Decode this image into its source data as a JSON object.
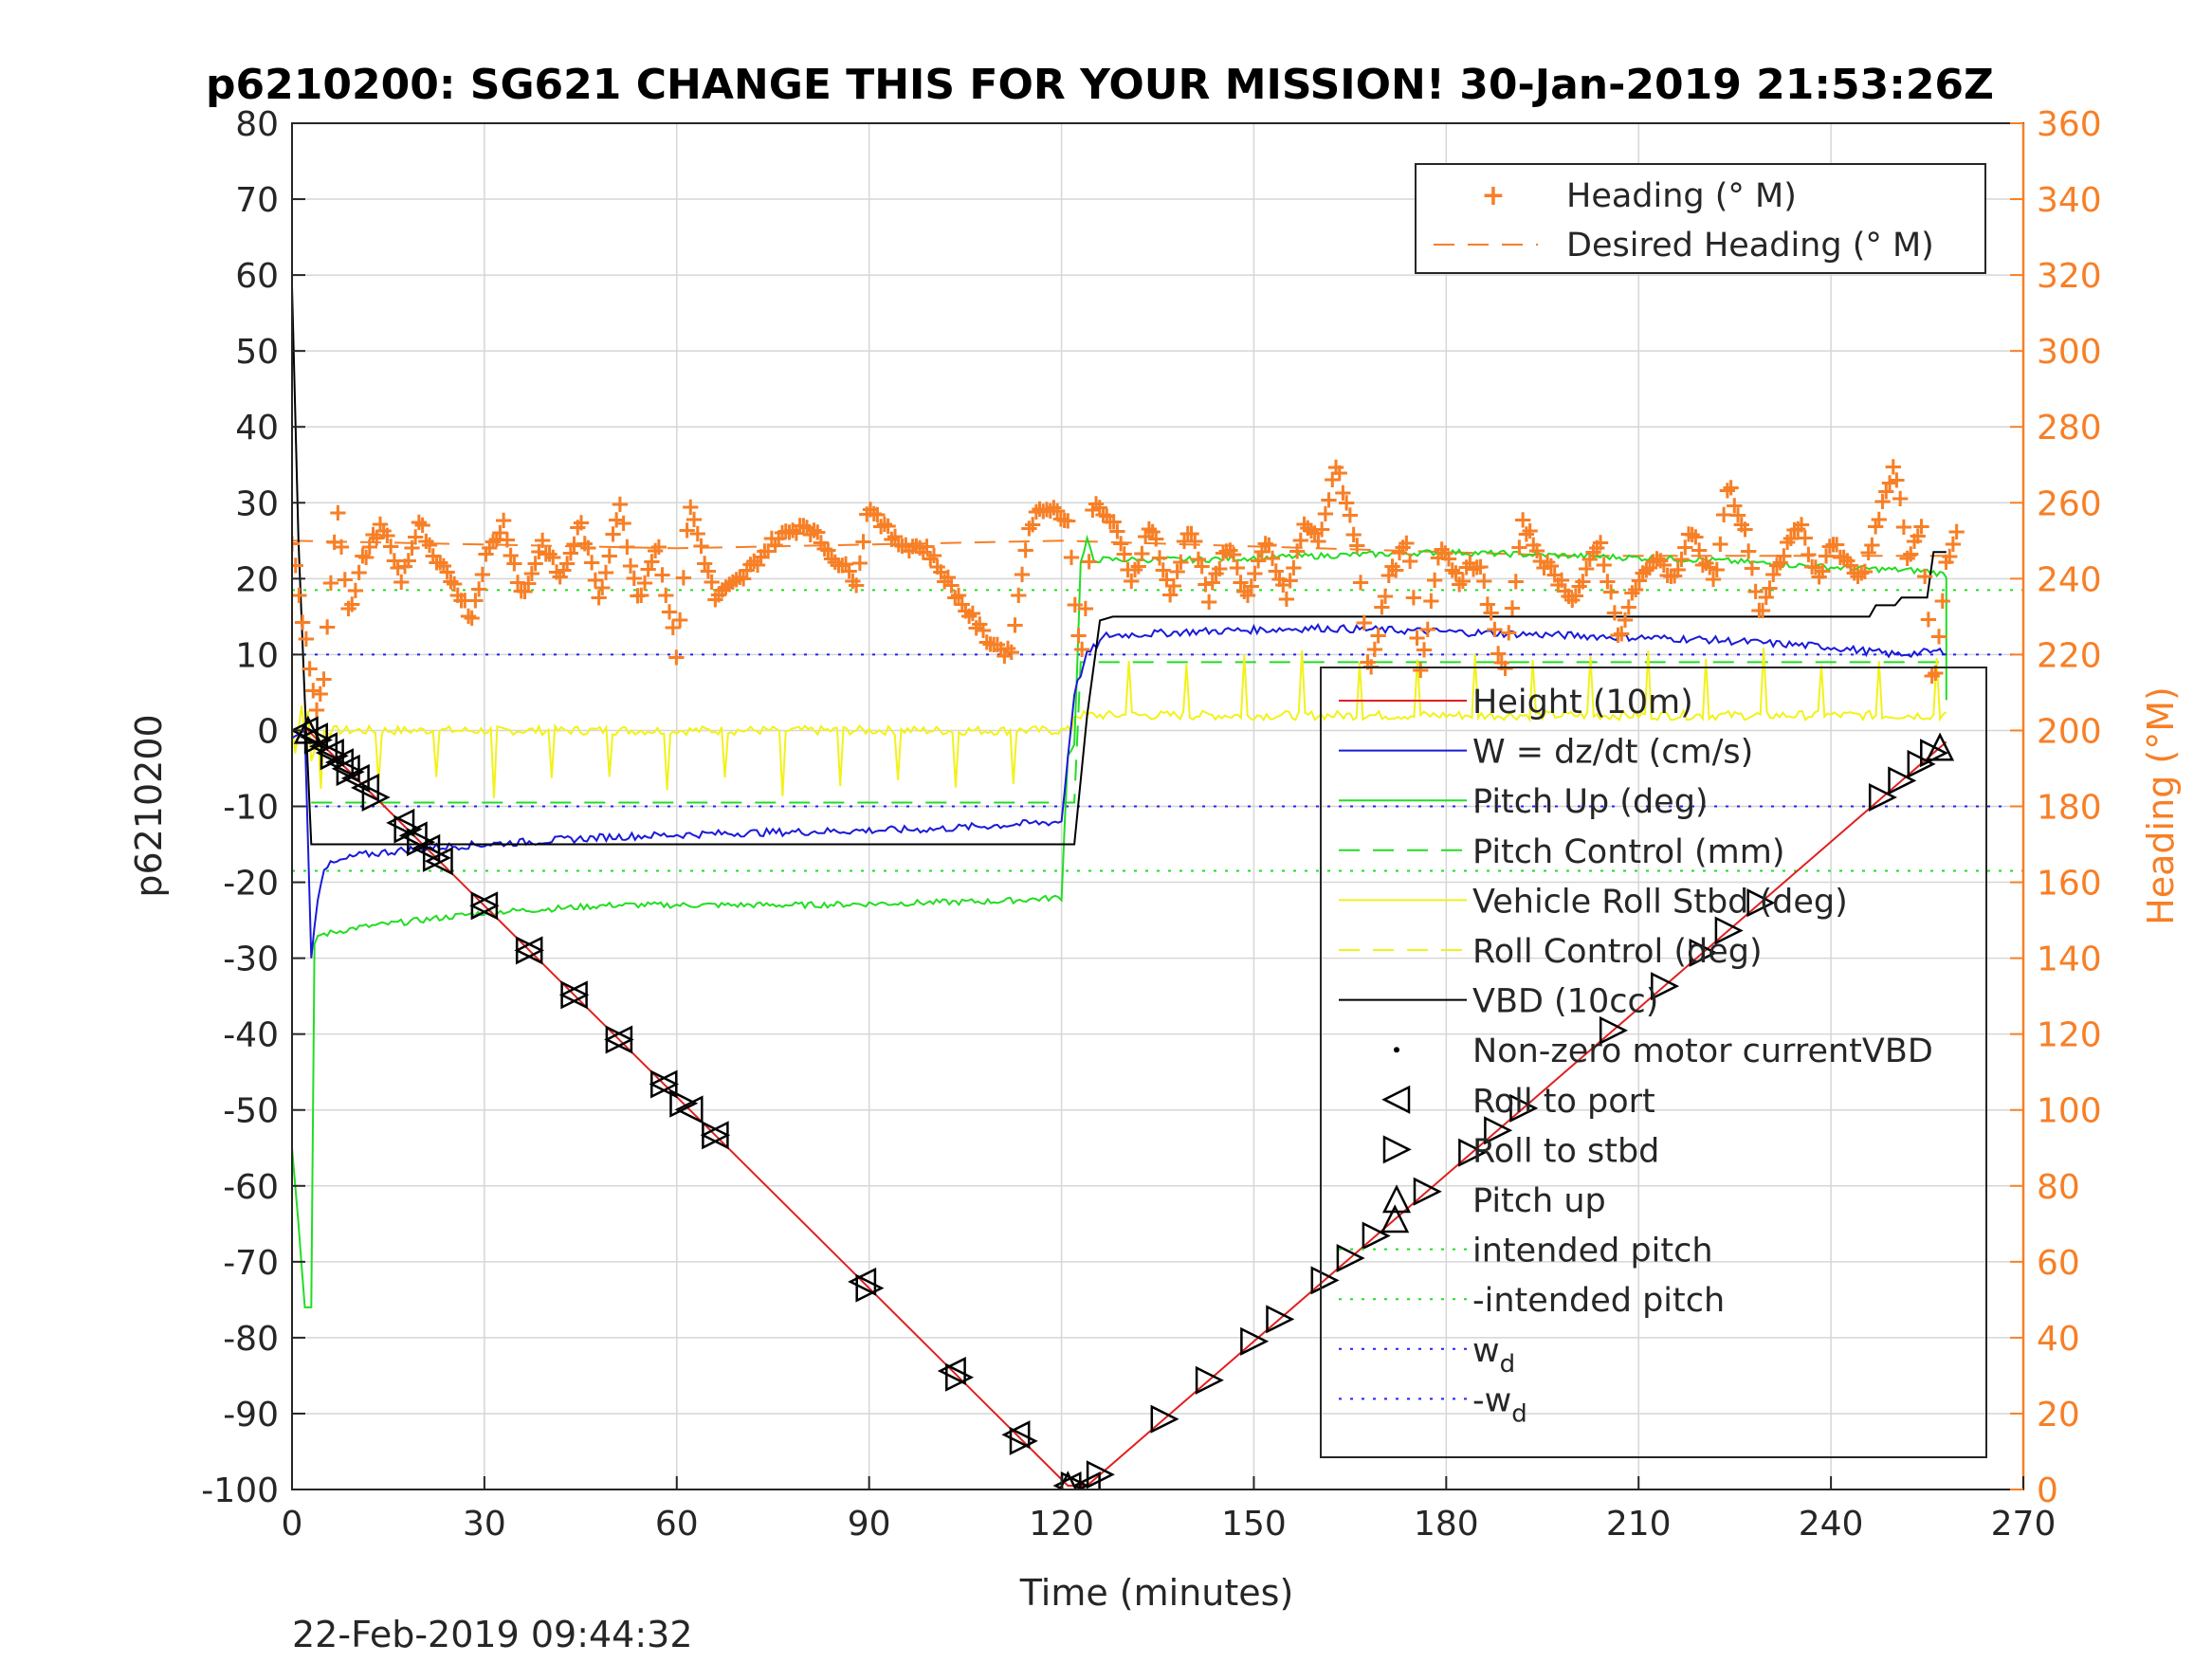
{
  "title": "p6210200: SG621 CHANGE THIS FOR YOUR MISSION! 30-Jan-2019 21:53:26Z",
  "footer_timestamp": "22-Feb-2019 09:44:32",
  "colors": {
    "heading": "#f77f26",
    "height": "#e02020",
    "w": "#1a1ad8",
    "pitch": "#22dd22",
    "roll": "#f2f21a",
    "vbd": "#000000",
    "wd": "#2020ff"
  },
  "chart_data": {
    "type": "line",
    "xlabel": "Time (minutes)",
    "ylabel_left": "p6210200",
    "ylabel_right": "Heading (°M)",
    "xlim": [
      0,
      270
    ],
    "ylim_left": [
      -100,
      80
    ],
    "ylim_right": [
      0,
      360
    ],
    "x_ticks": [
      "0",
      "30",
      "60",
      "90",
      "120",
      "150",
      "180",
      "210",
      "240",
      "270"
    ],
    "y_ticks_left": [
      "80",
      "70",
      "60",
      "50",
      "40",
      "30",
      "20",
      "10",
      "0",
      "-10",
      "-20",
      "-30",
      "-40",
      "-50",
      "-60",
      "-70",
      "-80",
      "-90",
      "-100"
    ],
    "y_ticks_right": [
      "360",
      "340",
      "320",
      "300",
      "280",
      "260",
      "240",
      "220",
      "200",
      "180",
      "160",
      "140",
      "120",
      "100",
      "80",
      "60",
      "40",
      "20",
      "0"
    ],
    "grid": true,
    "legend_heading": [
      "Heading (° M)",
      "Desired Heading (° M)"
    ],
    "legend_main": [
      "Height (10m)",
      "W = dz/dt (cm/s)",
      "Pitch Up (deg)",
      "Pitch Control (mm)",
      "Vehicle Roll Stbd (deg)",
      "Roll Control (deg)",
      "VBD (10cc)",
      "Non-zero motor currentVBD",
      "Roll to port",
      "Roll to stbd",
      "Pitch up",
      "intended pitch",
      "-intended pitch",
      "w_d",
      "-w_d"
    ],
    "legend_main_display": [
      {
        "text": "Height (10m)"
      },
      {
        "text": "W = dz/dt (cm/s)"
      },
      {
        "text": "Pitch Up (deg)"
      },
      {
        "text": "Pitch Control (mm)"
      },
      {
        "text": "Vehicle Roll Stbd (deg)"
      },
      {
        "text": "Roll Control (deg)"
      },
      {
        "text": "VBD (10cc)"
      },
      {
        "text": "Non-zero motor currentVBD"
      },
      {
        "text": "Roll to port"
      },
      {
        "text": "Roll to stbd"
      },
      {
        "text": "Pitch up"
      },
      {
        "text": "intended pitch"
      },
      {
        "text": "-intended pitch"
      },
      {
        "text": "w",
        "sub": "d"
      },
      {
        "text": "-w",
        "sub": "d"
      }
    ],
    "series": {
      "height": [
        [
          0,
          0
        ],
        [
          2.5,
          0
        ],
        [
          121,
          -99.5
        ],
        [
          124,
          -99.5
        ],
        [
          258,
          -1.5
        ]
      ],
      "vbd": [
        [
          0,
          58.5
        ],
        [
          1,
          25
        ],
        [
          2,
          4
        ],
        [
          3,
          -15
        ],
        [
          122,
          -15
        ],
        [
          124,
          2
        ],
        [
          126,
          14.5
        ],
        [
          128,
          15
        ],
        [
          246,
          15
        ],
        [
          247,
          16.5
        ],
        [
          250,
          16.5
        ],
        [
          251,
          17.5
        ],
        [
          255,
          17.5
        ],
        [
          256,
          23.5
        ],
        [
          258,
          23.5
        ]
      ],
      "w": [
        [
          0,
          -1
        ],
        [
          2,
          0
        ],
        [
          3,
          -30
        ],
        [
          4,
          -22
        ],
        [
          5,
          -18
        ],
        [
          10,
          -16.5
        ],
        [
          20,
          -15.5
        ],
        [
          30,
          -15
        ],
        [
          50,
          -14
        ],
        [
          70,
          -13.5
        ],
        [
          100,
          -13
        ],
        [
          120,
          -12
        ],
        [
          122,
          5
        ],
        [
          124,
          10
        ],
        [
          127,
          12.5
        ],
        [
          140,
          13
        ],
        [
          160,
          13.5
        ],
        [
          180,
          13
        ],
        [
          200,
          12.5
        ],
        [
          220,
          12
        ],
        [
          240,
          11
        ],
        [
          250,
          10
        ],
        [
          258,
          10.5
        ]
      ],
      "pitch": [
        [
          0,
          -55
        ],
        [
          1,
          -65
        ],
        [
          2,
          -76
        ],
        [
          3,
          -76
        ],
        [
          3,
          -30
        ],
        [
          4,
          -27
        ],
        [
          10,
          -26
        ],
        [
          20,
          -25
        ],
        [
          30,
          -24
        ],
        [
          50,
          -23
        ],
        [
          80,
          -23
        ],
        [
          110,
          -22.5
        ],
        [
          120,
          -22
        ],
        [
          121,
          -3
        ],
        [
          122,
          -2
        ],
        [
          123,
          22
        ],
        [
          124,
          25
        ],
        [
          125,
          22.5
        ],
        [
          140,
          22.5
        ],
        [
          160,
          23
        ],
        [
          180,
          23.5
        ],
        [
          200,
          23
        ],
        [
          220,
          22.5
        ],
        [
          240,
          21.5
        ],
        [
          255,
          21
        ],
        [
          258,
          20.5
        ],
        [
          258,
          4
        ]
      ],
      "pitch_control": [
        [
          3,
          -9.5
        ],
        [
          122,
          -9.5
        ],
        [
          123,
          9
        ],
        [
          258,
          9
        ]
      ],
      "intended_pitch": 18.5,
      "neg_intended_pitch": -18.5,
      "wd": 10,
      "neg_wd": -10,
      "roll_port_times": [
        2,
        3.5,
        5,
        6,
        7.5,
        8.5,
        10,
        11.5,
        17,
        19,
        21,
        23,
        30,
        37,
        44,
        51,
        58,
        62,
        66,
        89,
        103,
        113,
        121,
        124
      ],
      "roll_stbd_times": [
        4,
        6.5,
        9,
        13,
        18,
        20,
        22.5,
        30,
        37,
        44,
        51,
        58,
        61,
        66,
        90,
        104,
        114,
        122,
        126,
        136,
        143,
        150,
        154,
        161,
        165,
        169,
        177,
        184,
        188,
        192,
        206,
        214,
        220,
        224,
        229,
        248,
        251,
        254,
        256
      ],
      "pitch_up_times": [
        2.5,
        121,
        172,
        257
      ],
      "heading_anchors": [
        [
          0,
          250
        ],
        [
          2,
          225
        ],
        [
          3,
          215
        ],
        [
          4,
          205
        ],
        [
          5,
          215
        ],
        [
          7,
          260
        ],
        [
          9,
          230
        ],
        [
          11,
          245
        ],
        [
          14,
          255
        ],
        [
          17,
          240
        ],
        [
          20,
          255
        ],
        [
          22,
          245
        ],
        [
          25,
          240
        ],
        [
          28,
          230
        ],
        [
          30,
          245
        ],
        [
          33,
          255
        ],
        [
          36,
          235
        ],
        [
          39,
          250
        ],
        [
          42,
          240
        ],
        [
          45,
          255
        ],
        [
          48,
          235
        ],
        [
          51,
          260
        ],
        [
          54,
          235
        ],
        [
          57,
          250
        ],
        [
          60,
          220
        ],
        [
          62,
          260
        ],
        [
          66,
          235
        ],
        [
          70,
          240
        ],
        [
          75,
          250
        ],
        [
          80,
          255
        ],
        [
          85,
          245
        ],
        [
          88,
          240
        ],
        [
          90,
          260
        ],
        [
          94,
          250
        ],
        [
          99,
          248
        ],
        [
          104,
          235
        ],
        [
          108,
          225
        ],
        [
          112,
          220
        ],
        [
          115,
          255
        ],
        [
          118,
          260
        ],
        [
          121,
          255
        ],
        [
          123,
          218
        ],
        [
          125,
          260
        ],
        [
          128,
          255
        ],
        [
          131,
          240
        ],
        [
          134,
          255
        ],
        [
          137,
          235
        ],
        [
          140,
          255
        ],
        [
          143,
          235
        ],
        [
          146,
          250
        ],
        [
          149,
          235
        ],
        [
          152,
          250
        ],
        [
          155,
          235
        ],
        [
          158,
          255
        ],
        [
          160,
          250
        ],
        [
          163,
          270
        ],
        [
          166,
          250
        ],
        [
          168,
          215
        ],
        [
          171,
          240
        ],
        [
          174,
          250
        ],
        [
          176,
          215
        ],
        [
          179,
          250
        ],
        [
          182,
          240
        ],
        [
          185,
          245
        ],
        [
          189,
          215
        ],
        [
          192,
          255
        ],
        [
          195,
          245
        ],
        [
          200,
          235
        ],
        [
          204,
          250
        ],
        [
          207,
          225
        ],
        [
          210,
          240
        ],
        [
          213,
          245
        ],
        [
          216,
          240
        ],
        [
          218,
          255
        ],
        [
          220,
          245
        ],
        [
          222,
          240
        ],
        [
          224,
          265
        ],
        [
          227,
          250
        ],
        [
          229,
          230
        ],
        [
          232,
          245
        ],
        [
          235,
          255
        ],
        [
          238,
          240
        ],
        [
          240,
          250
        ],
        [
          242,
          245
        ],
        [
          245,
          240
        ],
        [
          248,
          260
        ],
        [
          250,
          270
        ],
        [
          252,
          245
        ],
        [
          254,
          255
        ],
        [
          256,
          210
        ],
        [
          258,
          245
        ],
        [
          260,
          255
        ]
      ],
      "desired_heading_segments": [
        [
          0,
          250
        ],
        [
          60,
          248
        ],
        [
          120,
          250
        ],
        [
          200,
          246
        ],
        [
          258,
          246
        ]
      ]
    }
  }
}
